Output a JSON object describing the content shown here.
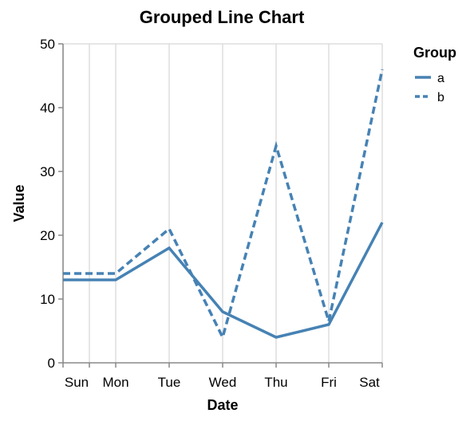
{
  "chart_data": {
    "type": "line",
    "title": "Grouped Line Chart",
    "xlabel": "Date",
    "ylabel": "Value",
    "categories": [
      "Sun",
      "Mon",
      "Tue",
      "Wed",
      "Thu",
      "Fri",
      "Sat"
    ],
    "ylim": [
      0,
      50
    ],
    "yticks": [
      0,
      10,
      20,
      30,
      40,
      50
    ],
    "grid": true,
    "legend": {
      "title": "Group",
      "placement": "right"
    },
    "series": [
      {
        "name": "a",
        "dash": "solid",
        "color": "#4682b4",
        "x": [
          "Sun",
          "Mon",
          "Tue",
          "Wed",
          "Thu",
          "Fri",
          "Sat"
        ],
        "values": [
          13,
          13,
          18,
          8,
          4,
          6,
          22
        ]
      },
      {
        "name": "b",
        "dash": "dashed",
        "color": "#4682b4",
        "x": [
          "Sun",
          "Mon",
          "Tue",
          "Wed",
          "Thu",
          "Fri",
          "Sat"
        ],
        "values": [
          14,
          14,
          21,
          4,
          34,
          6.5,
          46
        ]
      }
    ]
  }
}
